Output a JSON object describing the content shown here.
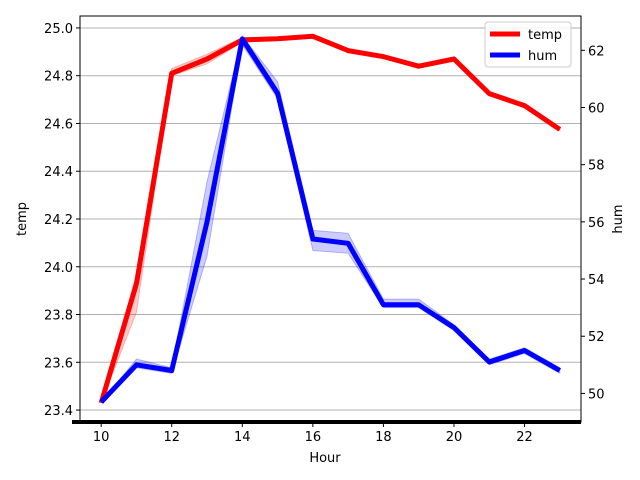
{
  "chart_data": {
    "type": "line",
    "title": "",
    "xlabel": "Hour",
    "ylabel_left": "temp",
    "ylabel_right": "hum",
    "x": [
      10,
      11,
      12,
      13,
      14,
      15,
      16,
      17,
      18,
      19,
      20,
      21,
      22,
      23
    ],
    "xlim": [
      9.4,
      23.6
    ],
    "xticks": [
      10,
      12,
      14,
      16,
      18,
      20,
      22
    ],
    "ylim_left": [
      23.35,
      25.05
    ],
    "yticks_left": [
      "23.4",
      "23.6",
      "23.8",
      "24.0",
      "24.2",
      "24.4",
      "24.6",
      "24.8",
      "25.0"
    ],
    "ylim_right": [
      49.0,
      63.2
    ],
    "yticks_right": [
      50,
      52,
      54,
      56,
      58,
      60,
      62
    ],
    "grid": "horizontal (left axis)",
    "legend_position": "top-right",
    "series": [
      {
        "name": "temp",
        "axis": "left",
        "color": "#ff0000",
        "values": [
          23.43,
          23.93,
          24.81,
          24.87,
          24.95,
          24.955,
          24.965,
          24.905,
          24.88,
          24.84,
          24.87,
          24.725,
          24.675,
          24.575
        ],
        "ci_low": [
          23.43,
          23.81,
          24.8,
          24.85,
          24.94,
          24.95,
          24.96,
          24.9,
          24.875,
          24.835,
          24.865,
          24.72,
          24.67,
          24.57
        ],
        "ci_high": [
          23.43,
          23.97,
          24.83,
          24.89,
          24.96,
          24.96,
          24.97,
          24.91,
          24.885,
          24.845,
          24.875,
          24.73,
          24.68,
          24.58
        ]
      },
      {
        "name": "hum",
        "axis": "right",
        "color": "#0000ff",
        "values": [
          49.7,
          51.0,
          50.8,
          56.0,
          62.4,
          60.5,
          55.4,
          55.25,
          53.1,
          53.1,
          52.3,
          51.1,
          51.5,
          50.8
        ],
        "ci_low": [
          49.7,
          50.9,
          50.7,
          54.8,
          62.2,
          60.3,
          55.0,
          54.9,
          53.0,
          53.0,
          52.2,
          51.0,
          51.4,
          50.7
        ],
        "ci_high": [
          49.7,
          51.2,
          50.9,
          57.4,
          62.5,
          60.9,
          55.7,
          55.6,
          53.3,
          53.3,
          52.4,
          51.2,
          51.6,
          50.9
        ]
      }
    ]
  }
}
